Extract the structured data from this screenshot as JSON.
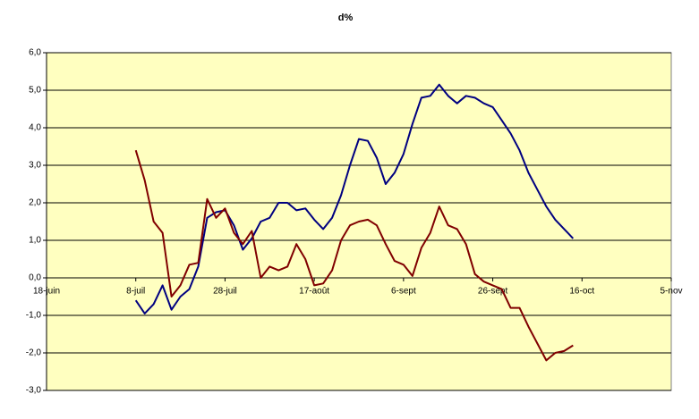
{
  "chart_data": {
    "type": "line",
    "title": "d%",
    "x": [
      20,
      22,
      24,
      26,
      28,
      30,
      32,
      34,
      36,
      38,
      40,
      42,
      44,
      46,
      48,
      50,
      52,
      54,
      56,
      58,
      60,
      62,
      64,
      66,
      68,
      70,
      72,
      74,
      76,
      78,
      80,
      82,
      84,
      86,
      88,
      90,
      92,
      94,
      96,
      98,
      100,
      102,
      104,
      106,
      108,
      110,
      112,
      114,
      116,
      118
    ],
    "series": [
      {
        "color": "#000080",
        "values": [
          -0.6,
          -0.95,
          -0.7,
          -0.2,
          -0.85,
          -0.5,
          -0.3,
          0.3,
          1.6,
          1.75,
          1.8,
          1.4,
          0.75,
          1.05,
          1.5,
          1.6,
          2.0,
          2.0,
          1.8,
          1.85,
          1.55,
          1.3,
          1.6,
          2.2,
          3.0,
          3.7,
          3.65,
          3.2,
          2.5,
          2.8,
          3.3,
          4.1,
          4.8,
          4.85,
          5.15,
          4.85,
          4.65,
          4.85,
          4.8,
          4.65,
          4.55,
          4.2,
          3.85,
          3.4,
          2.8,
          2.35,
          1.9,
          1.55,
          1.3,
          1.05
        ]
      },
      {
        "color": "#800000",
        "values": [
          3.4,
          2.6,
          1.5,
          1.2,
          -0.5,
          -0.2,
          0.35,
          0.4,
          2.1,
          1.6,
          1.85,
          1.2,
          0.9,
          1.25,
          0.0,
          0.3,
          0.2,
          0.3,
          0.9,
          0.5,
          -0.2,
          -0.15,
          0.2,
          1.0,
          1.4,
          1.5,
          1.55,
          1.4,
          0.9,
          0.45,
          0.35,
          0.05,
          0.8,
          1.2,
          1.9,
          1.4,
          1.3,
          0.9,
          0.1,
          -0.1,
          -0.2,
          -0.3,
          -0.8,
          -0.8,
          -1.3,
          -1.75,
          -2.2,
          -2.0,
          -1.95,
          -1.8
        ]
      }
    ],
    "xlim": [
      0,
      140
    ],
    "xticks": [
      {
        "value": 0,
        "label": "18-juin"
      },
      {
        "value": 20,
        "label": "8-juil"
      },
      {
        "value": 40,
        "label": "28-juil"
      },
      {
        "value": 60,
        "label": "17-août"
      },
      {
        "value": 80,
        "label": "6-sept"
      },
      {
        "value": 100,
        "label": "26-sept"
      },
      {
        "value": 120,
        "label": "16-oct"
      },
      {
        "value": 140,
        "label": "5-nov"
      }
    ],
    "ylim": [
      -3,
      6
    ],
    "yticks": [
      {
        "value": 6,
        "label": "6,0"
      },
      {
        "value": 5,
        "label": "5,0"
      },
      {
        "value": 4,
        "label": "4,0"
      },
      {
        "value": 3,
        "label": "3,0"
      },
      {
        "value": 2,
        "label": "2,0"
      },
      {
        "value": 1,
        "label": "1,0"
      },
      {
        "value": 0,
        "label": "0,0"
      },
      {
        "value": -1,
        "label": "-1,0"
      },
      {
        "value": -2,
        "label": "-2,0"
      },
      {
        "value": -3,
        "label": "-3,0"
      }
    ],
    "grid": true,
    "background": "#ffffc0"
  }
}
